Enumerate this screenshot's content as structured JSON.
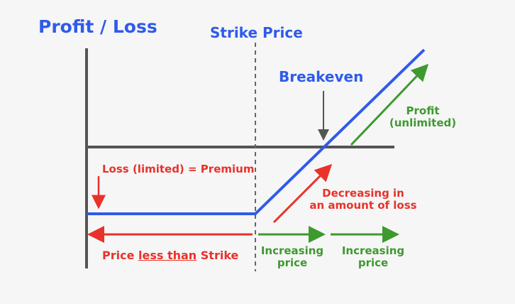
{
  "labels": {
    "y_axis_title": "Profit / Loss",
    "strike_price": "Strike Price",
    "breakeven": "Breakeven",
    "profit": "Profit",
    "profit_note": "(unlimited)",
    "loss": "Loss (limited) = Premium",
    "decreasing_1": "Decreasing in",
    "decreasing_2": "an amount of loss",
    "price_less_prefix": "Price ",
    "price_less_underlined": "less than",
    "price_less_suffix": " Strike",
    "increasing_price_1": "Increasing",
    "increasing_price_2": "price"
  },
  "colors": {
    "blue": "#2f5bea",
    "red": "#e8322a",
    "green": "#3d9a2e",
    "axis": "#555555",
    "background": "#f6f6f6"
  }
}
